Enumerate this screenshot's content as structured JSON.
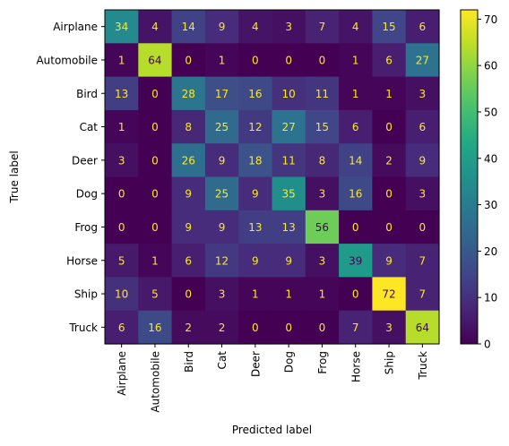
{
  "chart_data": {
    "type": "heatmap",
    "title": "",
    "xlabel": "Predicted label",
    "ylabel": "True label",
    "x_categories": [
      "Airplane",
      "Automobile",
      "Bird",
      "Cat",
      "Deer",
      "Dog",
      "Frog",
      "Horse",
      "Ship",
      "Truck"
    ],
    "y_categories": [
      "Airplane",
      "Automobile",
      "Bird",
      "Cat",
      "Deer",
      "Dog",
      "Frog",
      "Horse",
      "Ship",
      "Truck"
    ],
    "values": [
      [
        34,
        4,
        14,
        9,
        4,
        3,
        7,
        4,
        15,
        6
      ],
      [
        1,
        64,
        0,
        1,
        0,
        0,
        0,
        1,
        6,
        27
      ],
      [
        13,
        0,
        28,
        17,
        16,
        10,
        11,
        1,
        1,
        3
      ],
      [
        1,
        0,
        8,
        25,
        12,
        27,
        15,
        6,
        0,
        6
      ],
      [
        3,
        0,
        26,
        9,
        18,
        11,
        8,
        14,
        2,
        9
      ],
      [
        0,
        0,
        9,
        25,
        9,
        35,
        3,
        16,
        0,
        3
      ],
      [
        0,
        0,
        9,
        9,
        13,
        13,
        56,
        0,
        0,
        0
      ],
      [
        5,
        1,
        6,
        12,
        9,
        9,
        3,
        39,
        9,
        7
      ],
      [
        10,
        5,
        0,
        3,
        1,
        1,
        1,
        0,
        72,
        7
      ],
      [
        6,
        16,
        2,
        2,
        0,
        0,
        0,
        7,
        3,
        64
      ]
    ],
    "colormap": "viridis",
    "colorbar": {
      "vmin": 0,
      "vmax": 72,
      "ticks": [
        0,
        10,
        20,
        30,
        40,
        50,
        60,
        70
      ]
    },
    "grid": false
  }
}
